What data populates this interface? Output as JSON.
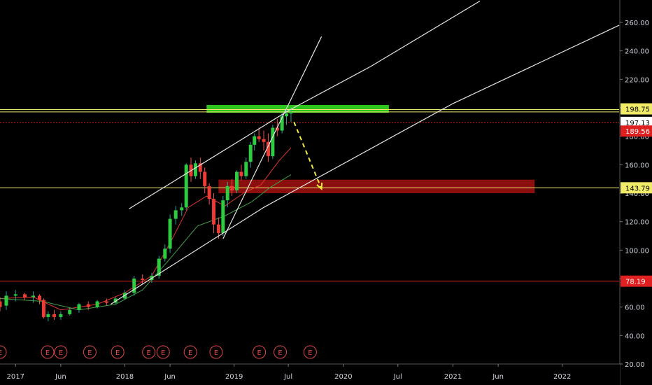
{
  "chart_data": {
    "type": "candlestick",
    "title": "",
    "xlabel": "",
    "ylabel": "",
    "ylim": [
      20,
      270
    ],
    "x_domain": [
      "2016-11-10",
      "2022-07-10"
    ],
    "grid": false,
    "y_ticks": [
      "260.00",
      "240.00",
      "220.00",
      "200.00",
      "180.00",
      "160.00",
      "140.00",
      "120.00",
      "100.00",
      "80.00",
      "60.00",
      "40.00",
      "20.00"
    ],
    "y_tick_values": [
      260,
      240,
      220,
      200,
      180,
      160,
      140,
      120,
      100,
      80,
      60,
      40,
      20
    ],
    "x_ticks": [
      {
        "label": "2017",
        "date": "2017-01-01"
      },
      {
        "label": "Jun",
        "date": "2017-06-01"
      },
      {
        "label": "2018",
        "date": "2018-01-01"
      },
      {
        "label": "Jun",
        "date": "2018-06-01"
      },
      {
        "label": "2019",
        "date": "2019-01-01"
      },
      {
        "label": "Jul",
        "date": "2019-07-01"
      },
      {
        "label": "2020",
        "date": "2020-01-01"
      },
      {
        "label": "Jul",
        "date": "2020-07-01"
      },
      {
        "label": "2021",
        "date": "2021-01-01"
      },
      {
        "label": "Jun",
        "date": "2021-06-01"
      },
      {
        "label": "2022",
        "date": "2022-01-01"
      }
    ],
    "price_badges": [
      {
        "label": "198.75",
        "value": 198.75,
        "bg": "#f0ec6a",
        "fg": "#000000"
      },
      {
        "label": "197.13",
        "value": 197.13,
        "bg": "#ffffff",
        "fg": "#000000"
      },
      {
        "label": "189.56",
        "value": 189.56,
        "bg": "#e02020",
        "fg": "#ffffff"
      },
      {
        "label": "143.79",
        "value": 143.79,
        "bg": "#f0ec6a",
        "fg": "#000000"
      },
      {
        "label": "78.19",
        "value": 78.19,
        "bg": "#e02020",
        "fg": "#ffffff"
      }
    ],
    "horizontal_lines": [
      {
        "value": 198.75,
        "color": "#f0ec6a",
        "style": "solid"
      },
      {
        "value": 197.13,
        "color": "#f0ec6a",
        "style": "solid"
      },
      {
        "value": 189.56,
        "color": "#e02020",
        "style": "dotted"
      },
      {
        "value": 143.79,
        "color": "#f0ec6a",
        "style": "solid"
      },
      {
        "value": 78.19,
        "color": "#e02020",
        "style": "solid"
      }
    ],
    "zones": [
      {
        "from": "2018-10-01",
        "to": "2020-06-01",
        "low": 196.5,
        "high": 202.0,
        "color": "#2ec21d"
      },
      {
        "from": "2018-11-10",
        "to": "2021-10-01",
        "low": 140.0,
        "high": 149.5,
        "color": "#8b0f0f"
      }
    ],
    "trend_lines": [
      {
        "points": [
          [
            "2017-11-15",
            62
          ],
          [
            "2019-04-10",
            130
          ],
          [
            "2021-01-01",
            203
          ],
          [
            "2022-07-10",
            258
          ]
        ],
        "color": "#e6e6e6"
      },
      {
        "points": [
          [
            "2018-01-15",
            129
          ],
          [
            "2019-07-01",
            198
          ],
          [
            "2020-04-01",
            229
          ],
          [
            "2021-04-01",
            275
          ]
        ],
        "color": "#e6e6e6"
      },
      {
        "points": [
          [
            "2018-11-25",
            108
          ],
          [
            "2019-10-20",
            250
          ]
        ],
        "color": "#e6e6e6"
      }
    ],
    "arrow": {
      "from": [
        "2019-07-20",
        190
      ],
      "to": [
        "2019-10-20",
        143
      ],
      "color": "#f0ec3c"
    },
    "ma_series": [
      {
        "color": "#e0362b",
        "points": [
          [
            "2016-11-10",
            66
          ],
          [
            "2017-03-01",
            67
          ],
          [
            "2017-06-01",
            58
          ],
          [
            "2017-10-01",
            62
          ],
          [
            "2018-01-01",
            70
          ],
          [
            "2018-04-01",
            82
          ],
          [
            "2018-06-01",
            105
          ],
          [
            "2018-08-01",
            130
          ],
          [
            "2018-10-01",
            138
          ],
          [
            "2018-12-01",
            131
          ],
          [
            "2019-02-01",
            140
          ],
          [
            "2019-04-01",
            146
          ],
          [
            "2019-06-01",
            163
          ],
          [
            "2019-07-10",
            172
          ]
        ]
      },
      {
        "color": "#3e9d47",
        "points": [
          [
            "2016-11-10",
            66
          ],
          [
            "2017-04-01",
            64
          ],
          [
            "2017-08-01",
            58
          ],
          [
            "2017-12-01",
            62
          ],
          [
            "2018-03-01",
            72
          ],
          [
            "2018-06-01",
            94
          ],
          [
            "2018-09-01",
            117
          ],
          [
            "2018-12-01",
            124
          ],
          [
            "2019-03-01",
            134
          ],
          [
            "2019-05-01",
            144
          ],
          [
            "2019-07-10",
            153
          ]
        ]
      }
    ],
    "series": [
      {
        "type": "candlestick",
        "ohlc": [
          [
            "2016-11-10",
            64,
            67,
            57,
            60
          ],
          [
            "2016-12-01",
            61,
            71,
            58,
            68
          ],
          [
            "2017-01-01",
            68,
            72,
            64,
            69
          ],
          [
            "2017-02-01",
            69,
            70,
            65,
            67
          ],
          [
            "2017-03-01",
            67,
            71,
            63,
            68
          ],
          [
            "2017-03-22",
            68,
            69,
            62,
            65
          ],
          [
            "2017-04-05",
            65,
            66,
            52,
            53
          ],
          [
            "2017-04-20",
            53,
            57,
            50,
            55
          ],
          [
            "2017-05-10",
            55,
            58,
            51,
            53
          ],
          [
            "2017-06-01",
            53,
            57,
            51,
            55
          ],
          [
            "2017-07-01",
            55,
            60,
            54,
            58
          ],
          [
            "2017-08-01",
            58,
            63,
            56,
            62
          ],
          [
            "2017-09-01",
            62,
            64,
            58,
            60
          ],
          [
            "2017-10-01",
            60,
            65,
            59,
            64
          ],
          [
            "2017-11-01",
            64,
            66,
            61,
            63
          ],
          [
            "2017-12-01",
            63,
            67,
            62,
            66
          ],
          [
            "2018-01-01",
            66,
            72,
            65,
            70
          ],
          [
            "2018-02-01",
            70,
            82,
            68,
            80
          ],
          [
            "2018-03-01",
            80,
            83,
            76,
            79
          ],
          [
            "2018-04-01",
            79,
            84,
            77,
            82
          ],
          [
            "2018-04-25",
            82,
            96,
            80,
            94
          ],
          [
            "2018-05-15",
            94,
            104,
            92,
            101
          ],
          [
            "2018-06-01",
            101,
            125,
            98,
            122
          ],
          [
            "2018-06-20",
            122,
            131,
            118,
            128
          ],
          [
            "2018-07-10",
            128,
            133,
            124,
            130
          ],
          [
            "2018-07-25",
            130,
            161,
            128,
            160
          ],
          [
            "2018-08-10",
            160,
            165,
            148,
            152
          ],
          [
            "2018-08-25",
            152,
            163,
            150,
            161
          ],
          [
            "2018-09-10",
            161,
            165,
            150,
            155
          ],
          [
            "2018-09-25",
            155,
            158,
            140,
            145
          ],
          [
            "2018-10-10",
            145,
            147,
            132,
            136
          ],
          [
            "2018-10-25",
            136,
            140,
            112,
            118
          ],
          [
            "2018-11-10",
            118,
            123,
            108,
            112
          ],
          [
            "2018-11-25",
            112,
            138,
            110,
            135
          ],
          [
            "2018-12-10",
            135,
            148,
            130,
            145
          ],
          [
            "2018-12-25",
            145,
            150,
            138,
            142
          ],
          [
            "2019-01-10",
            142,
            156,
            140,
            155
          ],
          [
            "2019-01-25",
            155,
            160,
            149,
            152
          ],
          [
            "2019-02-10",
            152,
            165,
            150,
            162
          ],
          [
            "2019-02-25",
            162,
            176,
            158,
            174
          ],
          [
            "2019-03-10",
            174,
            182,
            170,
            180
          ],
          [
            "2019-03-25",
            180,
            186,
            176,
            178
          ],
          [
            "2019-04-10",
            178,
            184,
            170,
            176
          ],
          [
            "2019-04-25",
            176,
            182,
            162,
            166
          ],
          [
            "2019-05-10",
            166,
            188,
            164,
            186
          ],
          [
            "2019-05-25",
            186,
            192,
            180,
            184
          ],
          [
            "2019-06-10",
            184,
            196,
            182,
            194
          ],
          [
            "2019-06-25",
            194,
            199,
            188,
            196
          ],
          [
            "2019-07-10",
            196,
            199,
            190,
            197
          ]
        ]
      }
    ],
    "earnings_markers": {
      "label": "E",
      "dates": [
        "2016-11-10",
        "2017-04-18",
        "2017-06-01",
        "2017-09-06",
        "2017-12-08",
        "2018-03-22",
        "2018-05-09",
        "2018-08-08",
        "2018-11-02",
        "2019-03-26",
        "2019-06-04",
        "2019-09-12"
      ]
    }
  }
}
